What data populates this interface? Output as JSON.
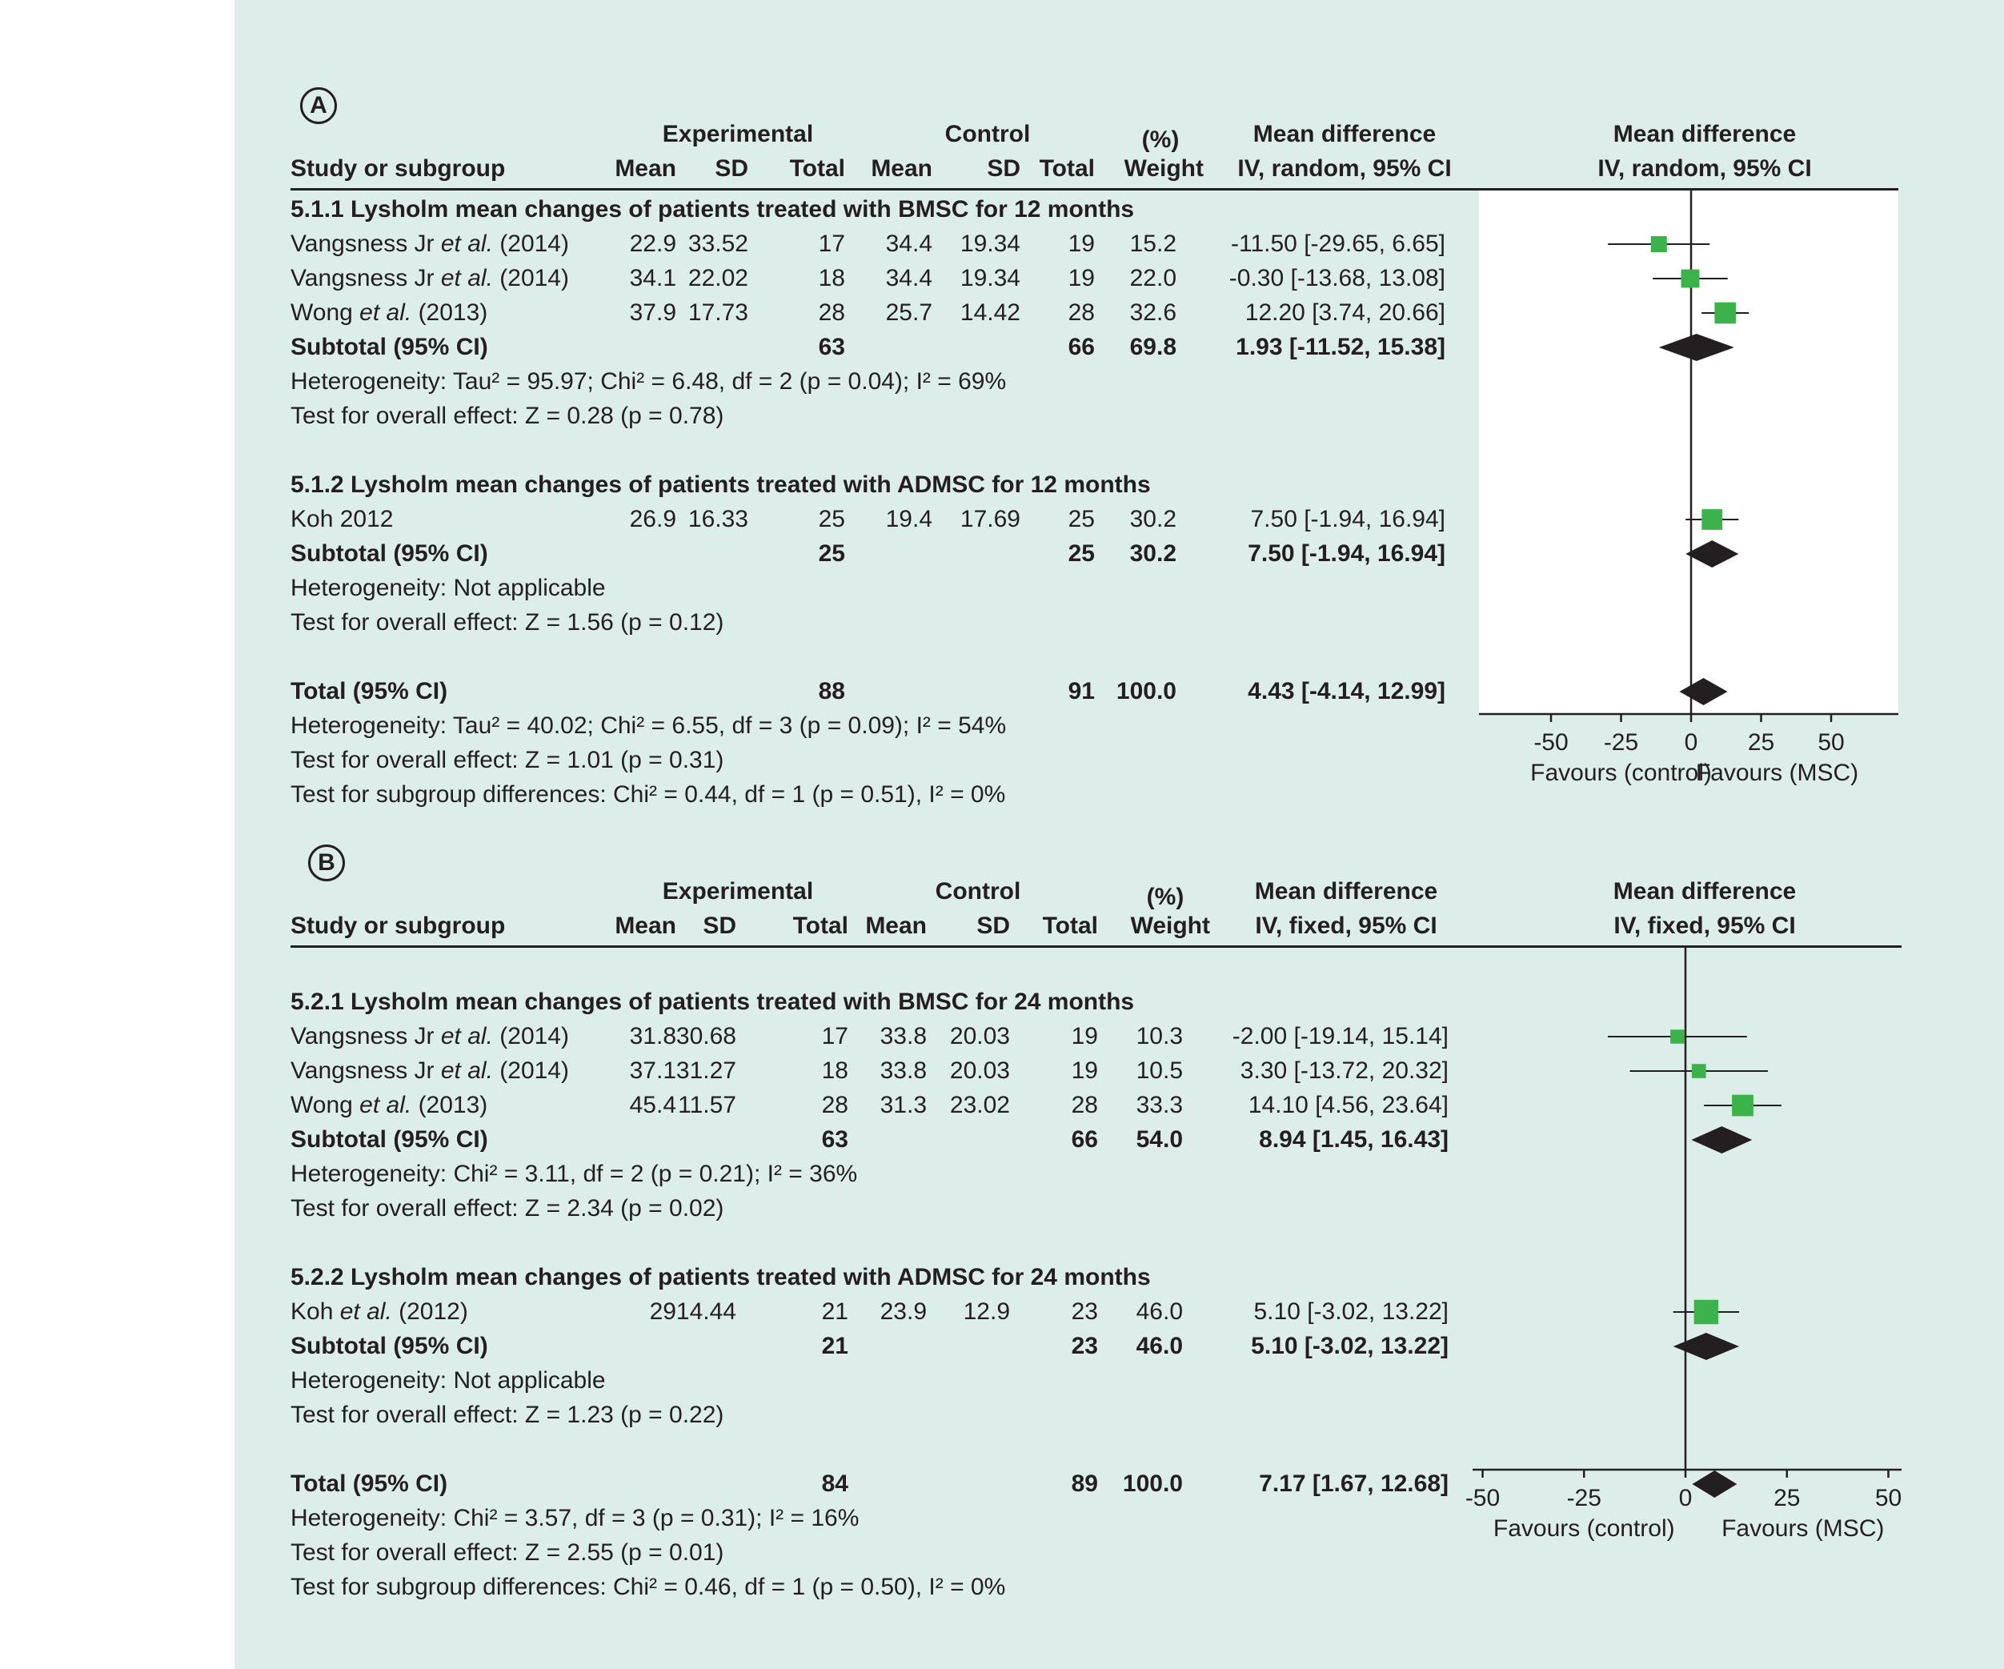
{
  "colors": {
    "background": "#ddeeea",
    "plot_background": "#ffffff",
    "square": "#3cb34a",
    "diamond": "#231f20",
    "text": "#231f20"
  },
  "chart_data": [
    {
      "type": "forest",
      "panel_label": "A",
      "header": {
        "group_experimental": "Experimental",
        "group_control": "Control",
        "pct": "(%)",
        "md_title": "Mean difference",
        "md_sub": "IV, random, 95% CI",
        "study": "Study or subgroup",
        "mean": "Mean",
        "sd": "SD",
        "total": "Total",
        "weight": "Weight",
        "plot_title": "Mean difference",
        "plot_sub": "IV, random, 95% CI"
      },
      "axis": {
        "ticks": [
          -50,
          -25,
          0,
          25,
          50
        ],
        "tick_labels": [
          "-50",
          "-25",
          "0",
          "25",
          "50"
        ],
        "xlim": [
          -75,
          75
        ],
        "label_left": "Favours (control)",
        "label_right": "Favours (MSC)"
      },
      "rows": [
        {
          "kind": "subgroup",
          "text": "5.1.1 Lysholm mean changes of patients treated with BMSC for 12 months"
        },
        {
          "kind": "study",
          "name": "Vangsness Jr",
          "italic": "et al.",
          "year": "(2014)",
          "e_mean": "22.9",
          "e_sd": "33.52",
          "e_total": "17",
          "c_mean": "34.4",
          "c_sd": "19.34",
          "c_total": "19",
          "weight": "15.2",
          "ci": "-11.50 [-29.65, 6.65]",
          "md": -11.5,
          "lo": -29.65,
          "hi": 6.65
        },
        {
          "kind": "study",
          "name": "Vangsness Jr",
          "italic": "et al.",
          "year": "(2014)",
          "e_mean": "34.1",
          "e_sd": "22.02",
          "e_total": "18",
          "c_mean": "34.4",
          "c_sd": "19.34",
          "c_total": "19",
          "weight": "22.0",
          "ci": "-0.30 [-13.68, 13.08]",
          "md": -0.3,
          "lo": -13.68,
          "hi": 13.08
        },
        {
          "kind": "study",
          "name": "Wong",
          "italic": "et al.",
          "year": "(2013)",
          "e_mean": "37.9",
          "e_sd": "17.73",
          "e_total": "28",
          "c_mean": "25.7",
          "c_sd": "14.42",
          "c_total": "28",
          "weight": "32.6",
          "ci": "12.20 [3.74, 20.66]",
          "md": 12.2,
          "lo": 3.74,
          "hi": 20.66
        },
        {
          "kind": "subtotal",
          "name": "Subtotal (95% CI)",
          "e_total": "63",
          "c_total": "66",
          "weight": "69.8",
          "ci": "1.93 [-11.52, 15.38]",
          "md": 1.93,
          "lo": -11.52,
          "hi": 15.38
        },
        {
          "kind": "text",
          "text": "Heterogeneity: Tau² = 95.97; Chi² = 6.48, df = 2 (p = 0.04); I² = 69%"
        },
        {
          "kind": "text",
          "text": "Test for overall effect: Z = 0.28 (p = 0.78)"
        },
        {
          "kind": "blank"
        },
        {
          "kind": "subgroup",
          "text": "5.1.2 Lysholm mean changes of patients treated with ADMSC for 12 months"
        },
        {
          "kind": "study",
          "name": "Koh 2012",
          "italic": "",
          "year": "",
          "e_mean": "26.9",
          "e_sd": "16.33",
          "e_total": "25",
          "c_mean": "19.4",
          "c_sd": "17.69",
          "c_total": "25",
          "weight": "30.2",
          "ci": "7.50 [-1.94, 16.94]",
          "md": 7.5,
          "lo": -1.94,
          "hi": 16.94
        },
        {
          "kind": "subtotal",
          "name": "Subtotal (95% CI)",
          "e_total": "25",
          "c_total": "25",
          "weight": "30.2",
          "ci": "7.50 [-1.94, 16.94]",
          "md": 7.5,
          "lo": -1.94,
          "hi": 16.94
        },
        {
          "kind": "text",
          "text": "Heterogeneity: Not applicable"
        },
        {
          "kind": "text",
          "text": "Test for overall effect: Z = 1.56 (p = 0.12)"
        },
        {
          "kind": "blank"
        },
        {
          "kind": "subtotal",
          "name": "Total (95% CI)",
          "e_total": "88",
          "c_total": "91",
          "weight": "100.0",
          "ci": "4.43 [-4.14, 12.99]",
          "md": 4.43,
          "lo": -4.14,
          "hi": 12.99
        },
        {
          "kind": "text",
          "text": "Heterogeneity: Tau² = 40.02; Chi² = 6.55, df = 3 (p = 0.09); I² = 54%"
        },
        {
          "kind": "text",
          "text": "Test for overall effect: Z = 1.01 (p = 0.31)"
        },
        {
          "kind": "text",
          "text": "Test for subgroup differences: Chi² = 0.44, df = 1 (p = 0.51), I² = 0%"
        }
      ]
    },
    {
      "type": "forest",
      "panel_label": "B",
      "header": {
        "group_experimental": "Experimental",
        "group_control": "Control",
        "pct": "(%)",
        "md_title": "Mean difference",
        "md_sub": "IV, fixed, 95% CI",
        "study": "Study or subgroup",
        "mean": "Mean",
        "sd": "SD",
        "total": "Total",
        "weight": "Weight",
        "plot_title": "Mean difference",
        "plot_sub": "IV, fixed, 95% CI"
      },
      "axis": {
        "ticks": [
          -50,
          -25,
          0,
          25,
          50
        ],
        "tick_labels": [
          "-50",
          "-25",
          "0",
          "25",
          "50"
        ],
        "xlim": [
          -50,
          50
        ],
        "label_left": "Favours (control)",
        "label_right": "Favours (MSC)"
      },
      "rows": [
        {
          "kind": "subgroup",
          "text": "5.2.1 Lysholm mean changes of patients treated with BMSC for 24 months"
        },
        {
          "kind": "study",
          "name": "Vangsness Jr",
          "italic": "et al.",
          "year": "(2014)",
          "e_mean": "31.8",
          "e_sd": "30.68",
          "e_total": "17",
          "c_mean": "33.8",
          "c_sd": "20.03",
          "c_total": "19",
          "weight": "10.3",
          "ci": "-2.00 [-19.14, 15.14]",
          "md": -2.0,
          "lo": -19.14,
          "hi": 15.14
        },
        {
          "kind": "study",
          "name": "Vangsness Jr",
          "italic": "et al.",
          "year": "(2014)",
          "e_mean": "37.1",
          "e_sd": "31.27",
          "e_total": "18",
          "c_mean": "33.8",
          "c_sd": "20.03",
          "c_total": "19",
          "weight": "10.5",
          "ci": "3.30 [-13.72, 20.32]",
          "md": 3.3,
          "lo": -13.72,
          "hi": 20.32
        },
        {
          "kind": "study",
          "name": "Wong",
          "italic": "et al.",
          "year": "(2013)",
          "e_mean": "45.4",
          "e_sd": "11.57",
          "e_total": "28",
          "c_mean": "31.3",
          "c_sd": "23.02",
          "c_total": "28",
          "weight": "33.3",
          "ci": "14.10 [4.56, 23.64]",
          "md": 14.1,
          "lo": 4.56,
          "hi": 23.64
        },
        {
          "kind": "subtotal",
          "name": "Subtotal (95% CI)",
          "e_total": "63",
          "c_total": "66",
          "weight": "54.0",
          "ci": "8.94 [1.45, 16.43]",
          "md": 8.94,
          "lo": 1.45,
          "hi": 16.43
        },
        {
          "kind": "text",
          "text": "Heterogeneity: Chi² = 3.11, df = 2 (p = 0.21); I² = 36%"
        },
        {
          "kind": "text",
          "text": "Test for overall effect: Z = 2.34 (p = 0.02)"
        },
        {
          "kind": "blank"
        },
        {
          "kind": "subgroup",
          "text": "5.2.2 Lysholm mean changes of patients treated with ADMSC for 24 months"
        },
        {
          "kind": "study",
          "name": "Koh",
          "italic": "et al.",
          "year": "(2012)",
          "e_mean": "29",
          "e_sd": "14.44",
          "e_total": "21",
          "c_mean": "23.9",
          "c_sd": "12.9",
          "c_total": "23",
          "weight": "46.0",
          "ci": "5.10 [-3.02, 13.22]",
          "md": 5.1,
          "lo": -3.02,
          "hi": 13.22
        },
        {
          "kind": "subtotal",
          "name": "Subtotal (95% CI)",
          "e_total": "21",
          "c_total": "23",
          "weight": "46.0",
          "ci": "5.10 [-3.02, 13.22]",
          "md": 5.1,
          "lo": -3.02,
          "hi": 13.22
        },
        {
          "kind": "text",
          "text": "Heterogeneity: Not applicable"
        },
        {
          "kind": "text",
          "text": "Test for overall effect: Z = 1.23 (p = 0.22)"
        },
        {
          "kind": "blank"
        },
        {
          "kind": "subtotal",
          "name": "Total (95% CI)",
          "e_total": "84",
          "c_total": "89",
          "weight": "100.0",
          "ci": "7.17 [1.67, 12.68]",
          "md": 7.17,
          "lo": 1.67,
          "hi": 12.68
        },
        {
          "kind": "text",
          "text": "Heterogeneity: Chi² = 3.57, df = 3 (p = 0.31); I² = 16%"
        },
        {
          "kind": "text",
          "text": "Test for overall effect: Z = 2.55 (p = 0.01)"
        },
        {
          "kind": "text",
          "text": "Test for subgroup differences: Chi² = 0.46, df = 1 (p = 0.50), I² = 0%"
        }
      ]
    }
  ]
}
